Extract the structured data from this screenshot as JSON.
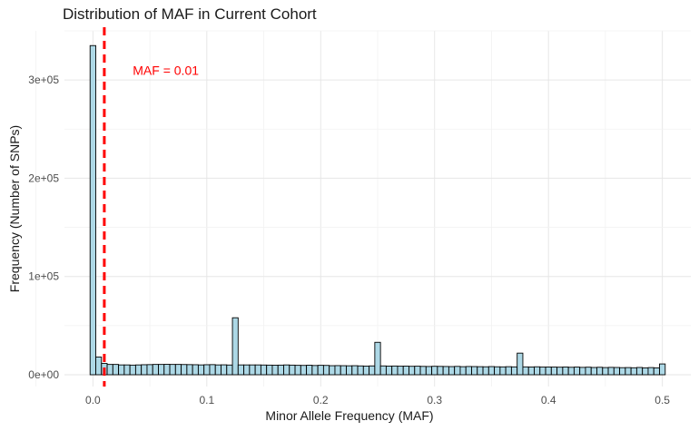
{
  "chart_data": {
    "type": "bar",
    "title": "Distribution of MAF in Current Cohort",
    "xlabel": "Minor Allele Frequency (MAF)",
    "ylabel": "Frequency (Number of SNPs)",
    "xlim": [
      -0.025,
      0.525
    ],
    "ylim": [
      -12000,
      350000
    ],
    "bin_width": 0.005,
    "x_ticks": [
      0,
      0.1,
      0.2,
      0.3,
      0.4,
      0.5
    ],
    "x_tick_labels": [
      "0.0",
      "0.1",
      "0.2",
      "0.3",
      "0.4",
      "0.5"
    ],
    "y_ticks": [
      0,
      100000,
      200000,
      300000
    ],
    "y_tick_labels": [
      "0e+00",
      "1e+05",
      "2e+05",
      "3e+05"
    ],
    "grid": true,
    "x": [
      0.0,
      0.005,
      0.01,
      0.015,
      0.02,
      0.025,
      0.03,
      0.035,
      0.04,
      0.045,
      0.05,
      0.055,
      0.06,
      0.065,
      0.07,
      0.075,
      0.08,
      0.085,
      0.09,
      0.095,
      0.1,
      0.105,
      0.11,
      0.115,
      0.12,
      0.125,
      0.13,
      0.135,
      0.14,
      0.145,
      0.15,
      0.155,
      0.16,
      0.165,
      0.17,
      0.175,
      0.18,
      0.185,
      0.19,
      0.195,
      0.2,
      0.205,
      0.21,
      0.215,
      0.22,
      0.225,
      0.23,
      0.235,
      0.24,
      0.245,
      0.25,
      0.255,
      0.26,
      0.265,
      0.27,
      0.275,
      0.28,
      0.285,
      0.29,
      0.295,
      0.3,
      0.305,
      0.31,
      0.315,
      0.32,
      0.325,
      0.33,
      0.335,
      0.34,
      0.345,
      0.35,
      0.355,
      0.36,
      0.365,
      0.37,
      0.375,
      0.38,
      0.385,
      0.39,
      0.395,
      0.4,
      0.405,
      0.41,
      0.415,
      0.42,
      0.425,
      0.43,
      0.435,
      0.44,
      0.445,
      0.45,
      0.455,
      0.46,
      0.465,
      0.47,
      0.475,
      0.48,
      0.485,
      0.49,
      0.495,
      0.5
    ],
    "values": [
      335000,
      18000,
      11500,
      10500,
      10500,
      10000,
      10000,
      9800,
      10000,
      10200,
      10300,
      10500,
      10500,
      10600,
      10500,
      10500,
      10400,
      10300,
      10200,
      10000,
      10200,
      10300,
      10000,
      10100,
      9900,
      58000,
      10000,
      10000,
      10000,
      10000,
      9900,
      9800,
      9700,
      9800,
      10000,
      9800,
      9600,
      9500,
      9700,
      9400,
      9600,
      9500,
      9200,
      9300,
      9200,
      9100,
      9200,
      9000,
      8800,
      9000,
      33000,
      9000,
      8800,
      8900,
      8700,
      8800,
      8600,
      8700,
      8500,
      8400,
      8600,
      8500,
      8400,
      8300,
      8500,
      8200,
      8400,
      8300,
      8200,
      8100,
      8300,
      8100,
      8000,
      8200,
      8000,
      22000,
      8000,
      7900,
      8100,
      7800,
      7900,
      7800,
      7700,
      7900,
      7600,
      7800,
      7500,
      7700,
      7400,
      7600,
      7300,
      7500,
      7400,
      7200,
      7300,
      7100,
      7400,
      7000,
      7300,
      7000,
      11000
    ],
    "bar_fill": "#add8e6",
    "bar_stroke": "#000000",
    "reference_line": {
      "x": 0.01,
      "label": "MAF = 0.01",
      "label_x": 0.035,
      "label_y": 305000,
      "color": "#ff0000"
    }
  }
}
